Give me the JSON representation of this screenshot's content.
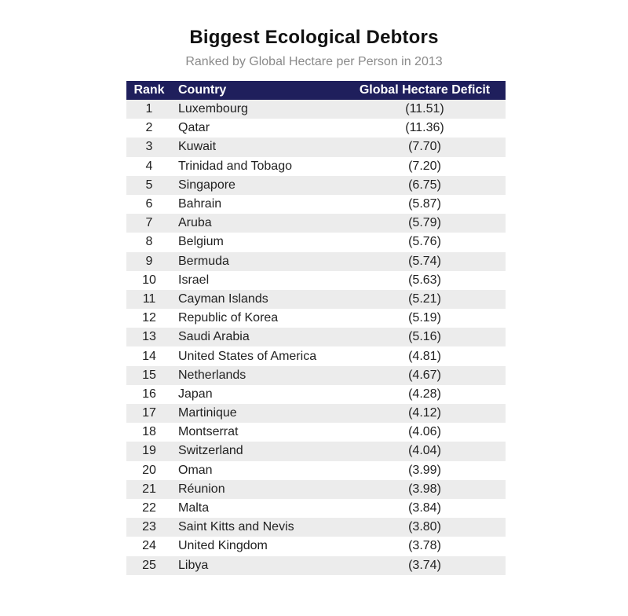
{
  "header": {
    "title": "Biggest Ecological Debtors",
    "subtitle": "Ranked by Global Hectare per Person in 2013"
  },
  "chart_data": {
    "type": "table",
    "title": "Biggest Ecological Debtors",
    "subtitle": "Ranked by Global Hectare per Person in 2013",
    "columns": [
      "Rank",
      "Country",
      "Global Hectare Deficit"
    ],
    "rows": [
      {
        "rank": "1",
        "country": "Luxembourg",
        "deficit": "(11.51)"
      },
      {
        "rank": "2",
        "country": "Qatar",
        "deficit": "(11.36)"
      },
      {
        "rank": "3",
        "country": "Kuwait",
        "deficit": "(7.70)"
      },
      {
        "rank": "4",
        "country": "Trinidad and Tobago",
        "deficit": "(7.20)"
      },
      {
        "rank": "5",
        "country": "Singapore",
        "deficit": "(6.75)"
      },
      {
        "rank": "6",
        "country": "Bahrain",
        "deficit": "(5.87)"
      },
      {
        "rank": "7",
        "country": "Aruba",
        "deficit": "(5.79)"
      },
      {
        "rank": "8",
        "country": "Belgium",
        "deficit": "(5.76)"
      },
      {
        "rank": "9",
        "country": "Bermuda",
        "deficit": "(5.74)"
      },
      {
        "rank": "10",
        "country": "Israel",
        "deficit": "(5.63)"
      },
      {
        "rank": "11",
        "country": "Cayman Islands",
        "deficit": "(5.21)"
      },
      {
        "rank": "12",
        "country": "Republic of Korea",
        "deficit": "(5.19)"
      },
      {
        "rank": "13",
        "country": "Saudi Arabia",
        "deficit": "(5.16)"
      },
      {
        "rank": "14",
        "country": "United States of America",
        "deficit": "(4.81)"
      },
      {
        "rank": "15",
        "country": "Netherlands",
        "deficit": "(4.67)"
      },
      {
        "rank": "16",
        "country": "Japan",
        "deficit": "(4.28)"
      },
      {
        "rank": "17",
        "country": "Martinique",
        "deficit": "(4.12)"
      },
      {
        "rank": "18",
        "country": "Montserrat",
        "deficit": "(4.06)"
      },
      {
        "rank": "19",
        "country": "Switzerland",
        "deficit": "(4.04)"
      },
      {
        "rank": "20",
        "country": "Oman",
        "deficit": "(3.99)"
      },
      {
        "rank": "21",
        "country": "Réunion",
        "deficit": "(3.98)"
      },
      {
        "rank": "22",
        "country": "Malta",
        "deficit": "(3.84)"
      },
      {
        "rank": "23",
        "country": "Saint Kitts and Nevis",
        "deficit": "(3.80)"
      },
      {
        "rank": "24",
        "country": "United Kingdom",
        "deficit": "(3.78)"
      },
      {
        "rank": "25",
        "country": "Libya",
        "deficit": "(3.74)"
      }
    ]
  },
  "colors": {
    "header_bg": "#1f1f5c",
    "header_text": "#ffffff",
    "stripe": "#ececec",
    "subtitle": "#8a8a8a"
  }
}
